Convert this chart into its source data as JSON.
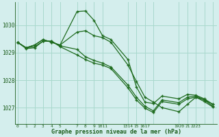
{
  "title": "Graphe pression niveau de la mer (hPa)",
  "bg_color": "#d4eeed",
  "grid_color": "#a8d8cc",
  "line_color": "#1e6b1e",
  "text_color": "#1a5c1a",
  "ylim": [
    1026.4,
    1030.85
  ],
  "yticks": [
    1027,
    1028,
    1029,
    1030
  ],
  "xtick_labels": [
    "0",
    "1",
    "2",
    "3",
    "4",
    "5",
    "",
    "7",
    "8",
    "9",
    "1011",
    "",
    "13",
    "1415",
    "",
    "1617",
    "",
    "1920",
    "",
    "2122",
    "23"
  ],
  "xtick_pos": [
    0,
    1,
    2,
    3,
    4,
    5,
    6,
    7,
    8,
    9,
    10,
    11,
    13,
    14,
    15,
    16,
    18,
    19,
    20,
    21,
    23
  ],
  "xlim": [
    -0.3,
    23.5
  ],
  "line1_x": [
    0,
    1,
    2,
    3,
    4,
    5,
    7,
    8,
    9,
    10,
    11,
    13,
    14,
    15,
    16,
    17,
    19,
    20,
    21,
    22,
    23
  ],
  "line1_y": [
    1029.38,
    1029.18,
    1029.28,
    1029.48,
    1029.38,
    1029.28,
    1030.5,
    1030.52,
    1030.18,
    1029.62,
    1029.48,
    1028.75,
    1027.75,
    1027.2,
    1027.15,
    1027.42,
    1027.32,
    1027.48,
    1027.45,
    1027.32,
    1027.12
  ],
  "line2_x": [
    0,
    1,
    2,
    3,
    4,
    5,
    7,
    8,
    9,
    10,
    11,
    13,
    14,
    15,
    16,
    17,
    19,
    20,
    21,
    22,
    23
  ],
  "line2_y": [
    1029.38,
    1029.18,
    1029.28,
    1029.48,
    1029.38,
    1029.28,
    1029.75,
    1029.8,
    1029.62,
    1029.55,
    1029.38,
    1028.55,
    1027.95,
    1027.38,
    1027.2,
    1027.0,
    1026.85,
    1027.12,
    1027.38,
    1027.28,
    1027.12
  ],
  "line3_x": [
    0,
    1,
    2,
    3,
    4,
    5,
    7,
    8,
    9,
    10,
    11,
    13,
    14,
    15,
    16,
    17,
    19,
    20,
    21,
    22,
    23
  ],
  "line3_y": [
    1029.38,
    1029.18,
    1029.22,
    1029.42,
    1029.42,
    1029.25,
    1029.12,
    1028.85,
    1028.72,
    1028.62,
    1028.48,
    1027.82,
    1027.38,
    1027.05,
    1026.88,
    1027.28,
    1027.18,
    1027.38,
    1027.42,
    1027.28,
    1027.05
  ],
  "line4_x": [
    0,
    1,
    2,
    3,
    4,
    5,
    7,
    8,
    9,
    10,
    11,
    13,
    14,
    15,
    16,
    17,
    19,
    20,
    21,
    22,
    23
  ],
  "line4_y": [
    1029.38,
    1029.15,
    1029.18,
    1029.42,
    1029.42,
    1029.22,
    1028.92,
    1028.75,
    1028.62,
    1028.55,
    1028.42,
    1027.72,
    1027.28,
    1026.98,
    1026.82,
    1027.22,
    1027.12,
    1027.32,
    1027.38,
    1027.22,
    1027.02
  ]
}
